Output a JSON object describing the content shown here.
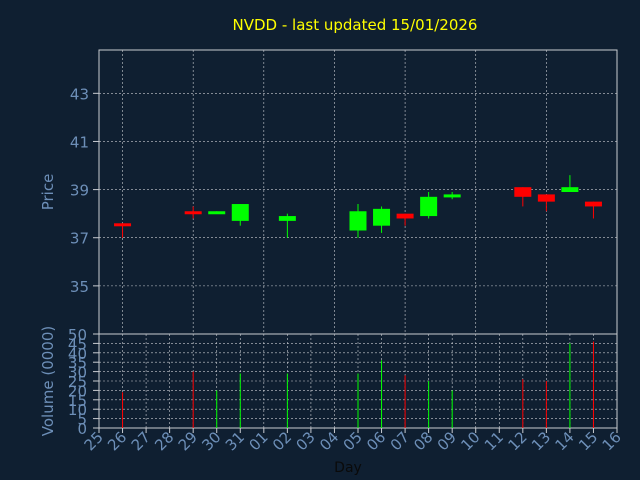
{
  "chart_data": {
    "type": "candlestick",
    "title": "NVDD - last updated 15/01/2026",
    "xlabel": "Day",
    "price_panel": {
      "ylabel": "Price",
      "ylim": [
        33,
        44.8
      ],
      "yticks": [
        35,
        37,
        39,
        41,
        43
      ],
      "grid": true
    },
    "volume_panel": {
      "ylabel": "Volume (0000)",
      "ylim": [
        0,
        50
      ],
      "yticks": [
        0,
        5,
        10,
        15,
        20,
        25,
        30,
        35,
        40,
        45,
        50
      ],
      "grid": true
    },
    "x_tick_labels": [
      "25",
      "26",
      "27",
      "28",
      "29",
      "30",
      "31",
      "01",
      "02",
      "03",
      "04",
      "05",
      "06",
      "07",
      "08",
      "09",
      "10",
      "11",
      "12",
      "13",
      "14",
      "15",
      "16"
    ],
    "candles": [
      {
        "day": "26",
        "open": 37.6,
        "high": 37.6,
        "low": 37.0,
        "close": 37.5,
        "volume": 19
      },
      {
        "day": "29",
        "open": 38.1,
        "high": 38.3,
        "low": 37.8,
        "close": 38.0,
        "volume": 30
      },
      {
        "day": "30",
        "open": 38.0,
        "high": 38.1,
        "low": 38.0,
        "close": 38.1,
        "volume": 20
      },
      {
        "day": "31",
        "open": 37.7,
        "high": 38.4,
        "low": 37.5,
        "close": 38.4,
        "volume": 29
      },
      {
        "day": "02",
        "open": 37.7,
        "high": 38.0,
        "low": 37.0,
        "close": 37.9,
        "volume": 29
      },
      {
        "day": "05",
        "open": 37.3,
        "high": 38.4,
        "low": 37.0,
        "close": 38.1,
        "volume": 29
      },
      {
        "day": "06",
        "open": 37.5,
        "high": 38.3,
        "low": 37.2,
        "close": 38.2,
        "volume": 36
      },
      {
        "day": "07",
        "open": 38.0,
        "high": 38.0,
        "low": 37.5,
        "close": 37.8,
        "volume": 28
      },
      {
        "day": "08",
        "open": 37.9,
        "high": 38.9,
        "low": 37.8,
        "close": 38.7,
        "volume": 25
      },
      {
        "day": "09",
        "open": 38.7,
        "high": 38.9,
        "low": 38.6,
        "close": 38.8,
        "volume": 20
      },
      {
        "day": "12",
        "open": 39.1,
        "high": 39.1,
        "low": 38.3,
        "close": 38.7,
        "volume": 26
      },
      {
        "day": "13",
        "open": 38.8,
        "high": 38.8,
        "low": 38.1,
        "close": 38.5,
        "volume": 25
      },
      {
        "day": "14",
        "open": 38.9,
        "high": 39.6,
        "low": 38.9,
        "close": 39.1,
        "volume": 45
      },
      {
        "day": "15",
        "open": 38.5,
        "high": 38.5,
        "low": 37.8,
        "close": 38.3,
        "volume": 46
      }
    ],
    "colors": {
      "up": "#00ff00",
      "down": "#ff0000",
      "axis_text": "#6d8fb8",
      "title": "#ffff00",
      "plot_frame": "#c9ccd1",
      "grid": "#c9ccd1",
      "background": "#0f1f31"
    }
  }
}
